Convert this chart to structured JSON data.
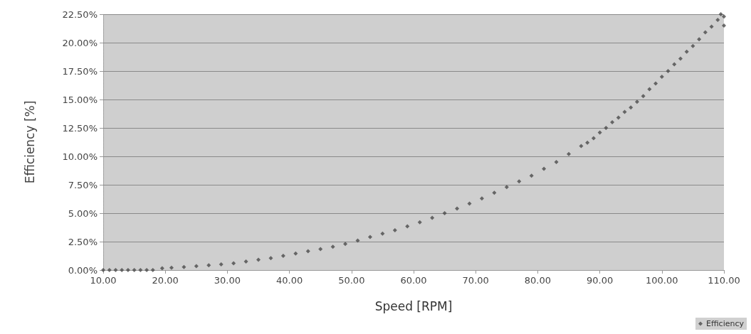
{
  "chart_data": {
    "type": "scatter",
    "xlabel": "Speed [RPM]",
    "ylabel": "Efficiency [%]",
    "x": [
      10,
      11,
      12,
      13,
      14,
      15,
      16,
      17,
      18,
      19.5,
      21,
      23,
      25,
      27,
      29,
      31,
      33,
      35,
      37,
      39,
      41,
      43,
      45,
      47,
      49,
      51,
      53,
      55,
      57,
      59,
      61,
      63,
      65,
      67,
      69,
      71,
      73,
      75,
      77,
      79,
      81,
      83,
      85,
      87,
      88,
      89,
      90,
      91,
      92,
      93,
      94,
      95,
      96,
      97,
      98,
      99,
      100,
      101,
      102,
      103,
      104,
      105,
      106,
      107,
      108,
      109,
      110,
      110,
      109.5
    ],
    "series": [
      {
        "name": "Efficiency",
        "color": "#4a4a4a",
        "values": [
          0,
          0,
          0,
          0,
          0,
          0,
          0,
          0,
          0,
          0.15,
          0.2,
          0.27,
          0.35,
          0.42,
          0.5,
          0.6,
          0.75,
          0.9,
          1.05,
          1.25,
          1.45,
          1.65,
          1.85,
          2.05,
          2.3,
          2.6,
          2.9,
          3.2,
          3.5,
          3.85,
          4.2,
          4.6,
          5.0,
          5.4,
          5.85,
          6.3,
          6.8,
          7.3,
          7.8,
          8.3,
          8.9,
          9.5,
          10.2,
          10.9,
          11.2,
          11.6,
          12.1,
          12.5,
          13.0,
          13.4,
          13.9,
          14.3,
          14.8,
          15.3,
          15.9,
          16.4,
          17.0,
          17.5,
          18.1,
          18.6,
          19.2,
          19.7,
          20.3,
          20.9,
          21.4,
          22.0,
          22.3,
          21.5,
          22.5
        ]
      }
    ],
    "xlim": [
      10,
      110
    ],
    "xticks": [
      {
        "value": 10,
        "label": "10.00"
      },
      {
        "value": 20,
        "label": "20.00"
      },
      {
        "value": 30,
        "label": "30.00"
      },
      {
        "value": 40,
        "label": "40.00"
      },
      {
        "value": 50,
        "label": "50.00"
      },
      {
        "value": 60,
        "label": "60.00"
      },
      {
        "value": 70,
        "label": "70.00"
      },
      {
        "value": 80,
        "label": "80.00"
      },
      {
        "value": 90,
        "label": "90.00"
      },
      {
        "value": 100,
        "label": "100.00"
      },
      {
        "value": 110,
        "label": "110.00"
      }
    ],
    "ylim": [
      0,
      22.5
    ],
    "yticks": [
      {
        "value": 0,
        "label": "0.00%"
      },
      {
        "value": 2.5,
        "label": "2.50%"
      },
      {
        "value": 5,
        "label": "5.00%"
      },
      {
        "value": 7.5,
        "label": "7.50%"
      },
      {
        "value": 10,
        "label": "10.00%"
      },
      {
        "value": 12.5,
        "label": "12.50%"
      },
      {
        "value": 15,
        "label": "15.00%"
      },
      {
        "value": 17.5,
        "label": "17.50%"
      },
      {
        "value": 20,
        "label": "20.00%"
      },
      {
        "value": 22.5,
        "label": "22.50%"
      }
    ],
    "grid": "y",
    "legend": "bottom right",
    "marker": "diamond"
  }
}
